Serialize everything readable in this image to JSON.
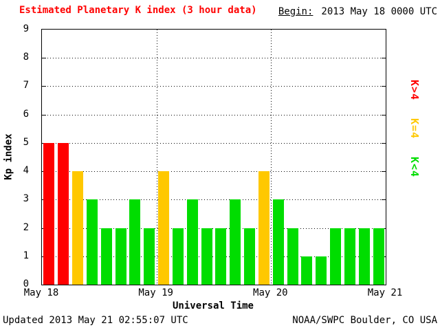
{
  "header": {
    "title": "Estimated Planetary K index (3 hour data)",
    "begin_label": "Begin:",
    "begin_value": "2013 May 18 0000 UTC"
  },
  "footer": {
    "updated": "Updated 2013 May 21 02:55:07 UTC",
    "source": "NOAA/SWPC Boulder, CO USA"
  },
  "legend": {
    "items": [
      {
        "label": "K>4",
        "color": "#ff0000"
      },
      {
        "label": "K=4",
        "color": "#ffc800"
      },
      {
        "label": "K<4",
        "color": "#00dd00"
      }
    ]
  },
  "chart_data": {
    "type": "bar",
    "title": "Estimated Planetary K index (3 hour data)",
    "xlabel": "Universal Time",
    "ylabel": "Kp index",
    "ylim": [
      0,
      9
    ],
    "y_ticks": [
      0,
      1,
      2,
      3,
      4,
      5,
      6,
      7,
      8,
      9
    ],
    "x_ticks": [
      "May 18",
      "May 19",
      "May 20",
      "May 21"
    ],
    "interval_hours": 3,
    "values": [
      5,
      5,
      4,
      3,
      2,
      2,
      3,
      2,
      4,
      2,
      3,
      2,
      2,
      3,
      2,
      4,
      3,
      2,
      1,
      1,
      2,
      2,
      2,
      2
    ],
    "color_rule": {
      "gt4": "#ff0000",
      "eq4": "#ffc800",
      "lt4": "#00dd00"
    },
    "grid": "dotted horizontal lines at each integer, dotted vertical lines at day boundaries",
    "legend_position": "right"
  }
}
